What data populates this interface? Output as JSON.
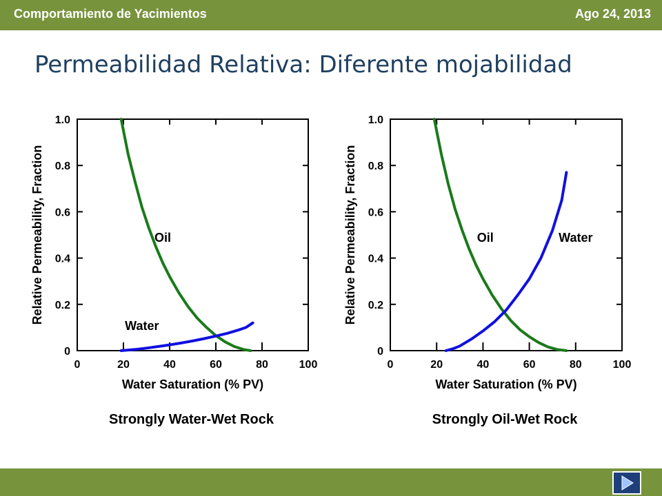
{
  "header": {
    "left_title": "Comportamiento de Yacimientos",
    "right_date": "Ago 24, 2013"
  },
  "slide": {
    "title": "Permeabilidad Relativa: Diferente mojabilidad"
  },
  "nav": {
    "next_icon": "play-next-icon"
  },
  "colors": {
    "bar": "#77933c",
    "title": "#1f3f5f",
    "oil": "#1a7a1a",
    "water": "#1010e0"
  },
  "chart_data": [
    {
      "type": "line",
      "title": "Strongly Water-Wet Rock",
      "xlabel": "Water Saturation (% PV)",
      "ylabel": "Relative Permeability, Fraction",
      "xlim": [
        0,
        100
      ],
      "ylim": [
        0,
        1.0
      ],
      "xticks": [
        "0",
        "20",
        "40",
        "60",
        "80",
        "100"
      ],
      "yticks": [
        "0",
        "0.2",
        "0.4",
        "0.6",
        "0.8",
        "1.0"
      ],
      "grid": false,
      "series": [
        {
          "name": "Oil",
          "color": "#1a7a1a",
          "x": [
            19,
            22,
            25,
            28,
            31,
            34,
            37,
            40,
            44,
            48,
            52,
            56,
            60,
            64,
            68,
            72,
            75
          ],
          "y": [
            1.0,
            0.85,
            0.73,
            0.62,
            0.53,
            0.45,
            0.38,
            0.32,
            0.25,
            0.19,
            0.14,
            0.1,
            0.065,
            0.038,
            0.018,
            0.005,
            0.0
          ]
        },
        {
          "name": "Water",
          "color": "#1010e0",
          "x": [
            19,
            25,
            30,
            35,
            40,
            45,
            50,
            55,
            60,
            65,
            70,
            73,
            76
          ],
          "y": [
            0.0,
            0.005,
            0.011,
            0.018,
            0.025,
            0.033,
            0.042,
            0.052,
            0.063,
            0.075,
            0.09,
            0.1,
            0.12
          ]
        }
      ],
      "series_labels": [
        {
          "text": "Oil",
          "x": 37,
          "y": 0.47
        },
        {
          "text": "Water",
          "x": 28,
          "y": 0.09
        }
      ]
    },
    {
      "type": "line",
      "title": "Strongly Oil-Wet Rock",
      "xlabel": "Water Saturation (% PV)",
      "ylabel": "Relative Permeability, Fraction",
      "xlim": [
        0,
        100
      ],
      "ylim": [
        0,
        1.0
      ],
      "xticks": [
        "0",
        "20",
        "40",
        "60",
        "80",
        "100"
      ],
      "yticks": [
        "0",
        "0.2",
        "0.4",
        "0.6",
        "0.8",
        "1.0"
      ],
      "grid": false,
      "series": [
        {
          "name": "Oil",
          "color": "#1a7a1a",
          "x": [
            19,
            22,
            25,
            28,
            31,
            34,
            37,
            40,
            44,
            48,
            52,
            56,
            60,
            64,
            68,
            72,
            76
          ],
          "y": [
            1.0,
            0.85,
            0.72,
            0.61,
            0.52,
            0.44,
            0.37,
            0.31,
            0.24,
            0.18,
            0.13,
            0.09,
            0.06,
            0.035,
            0.016,
            0.005,
            0.0
          ]
        },
        {
          "name": "Water",
          "color": "#1010e0",
          "x": [
            24,
            27,
            30,
            35,
            40,
            45,
            50,
            55,
            60,
            65,
            70,
            74,
            76
          ],
          "y": [
            0.0,
            0.008,
            0.02,
            0.05,
            0.085,
            0.125,
            0.175,
            0.24,
            0.31,
            0.4,
            0.52,
            0.65,
            0.77
          ]
        }
      ],
      "series_labels": [
        {
          "text": "Oil",
          "x": 41,
          "y": 0.47
        },
        {
          "text": "Water",
          "x": 80,
          "y": 0.47
        }
      ]
    }
  ]
}
